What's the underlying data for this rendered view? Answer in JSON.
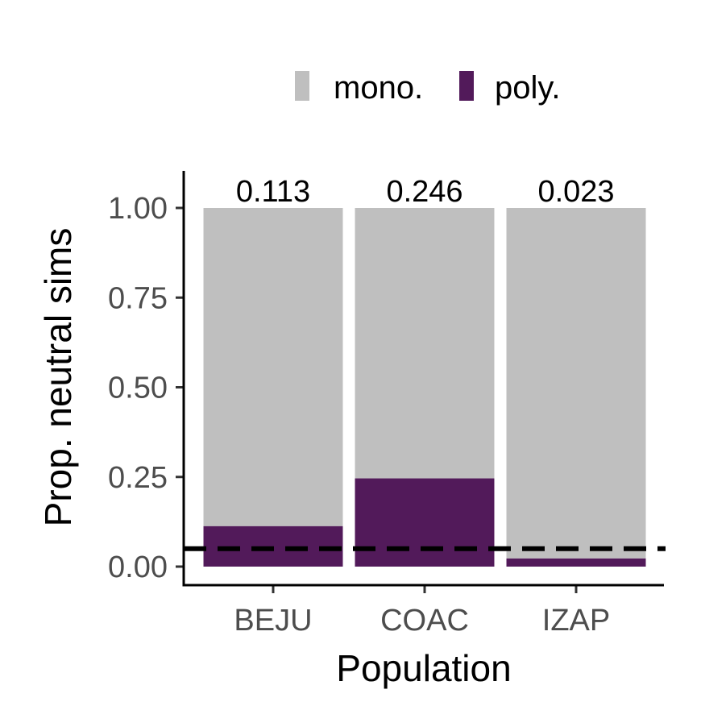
{
  "chart_data": {
    "type": "bar",
    "stacked": true,
    "xlabel": "Population",
    "ylabel": "Prop. neutral sims",
    "categories": [
      "BEJU",
      "COAC",
      "IZAP"
    ],
    "series": [
      {
        "name": "poly.",
        "values": [
          0.113,
          0.246,
          0.023
        ],
        "color": "#521a5a"
      },
      {
        "name": "mono.",
        "values": [
          0.887,
          0.754,
          0.977
        ],
        "color": "#bfbfbf"
      }
    ],
    "data_labels": [
      "0.113",
      "0.246",
      "0.023"
    ],
    "yticks": [
      0.0,
      0.25,
      0.5,
      0.75,
      1.0
    ],
    "ytick_labels": [
      "0.00",
      "0.25",
      "0.50",
      "0.75",
      "1.00"
    ],
    "ylim": [
      -0.05,
      1.1
    ],
    "reference_line": {
      "y": 0.05,
      "style": "dashed",
      "color": "#000000"
    },
    "legend": {
      "position": "top",
      "entries": [
        {
          "label": "mono.",
          "color": "#bfbfbf"
        },
        {
          "label": "poly.",
          "color": "#521a5a"
        }
      ]
    }
  }
}
